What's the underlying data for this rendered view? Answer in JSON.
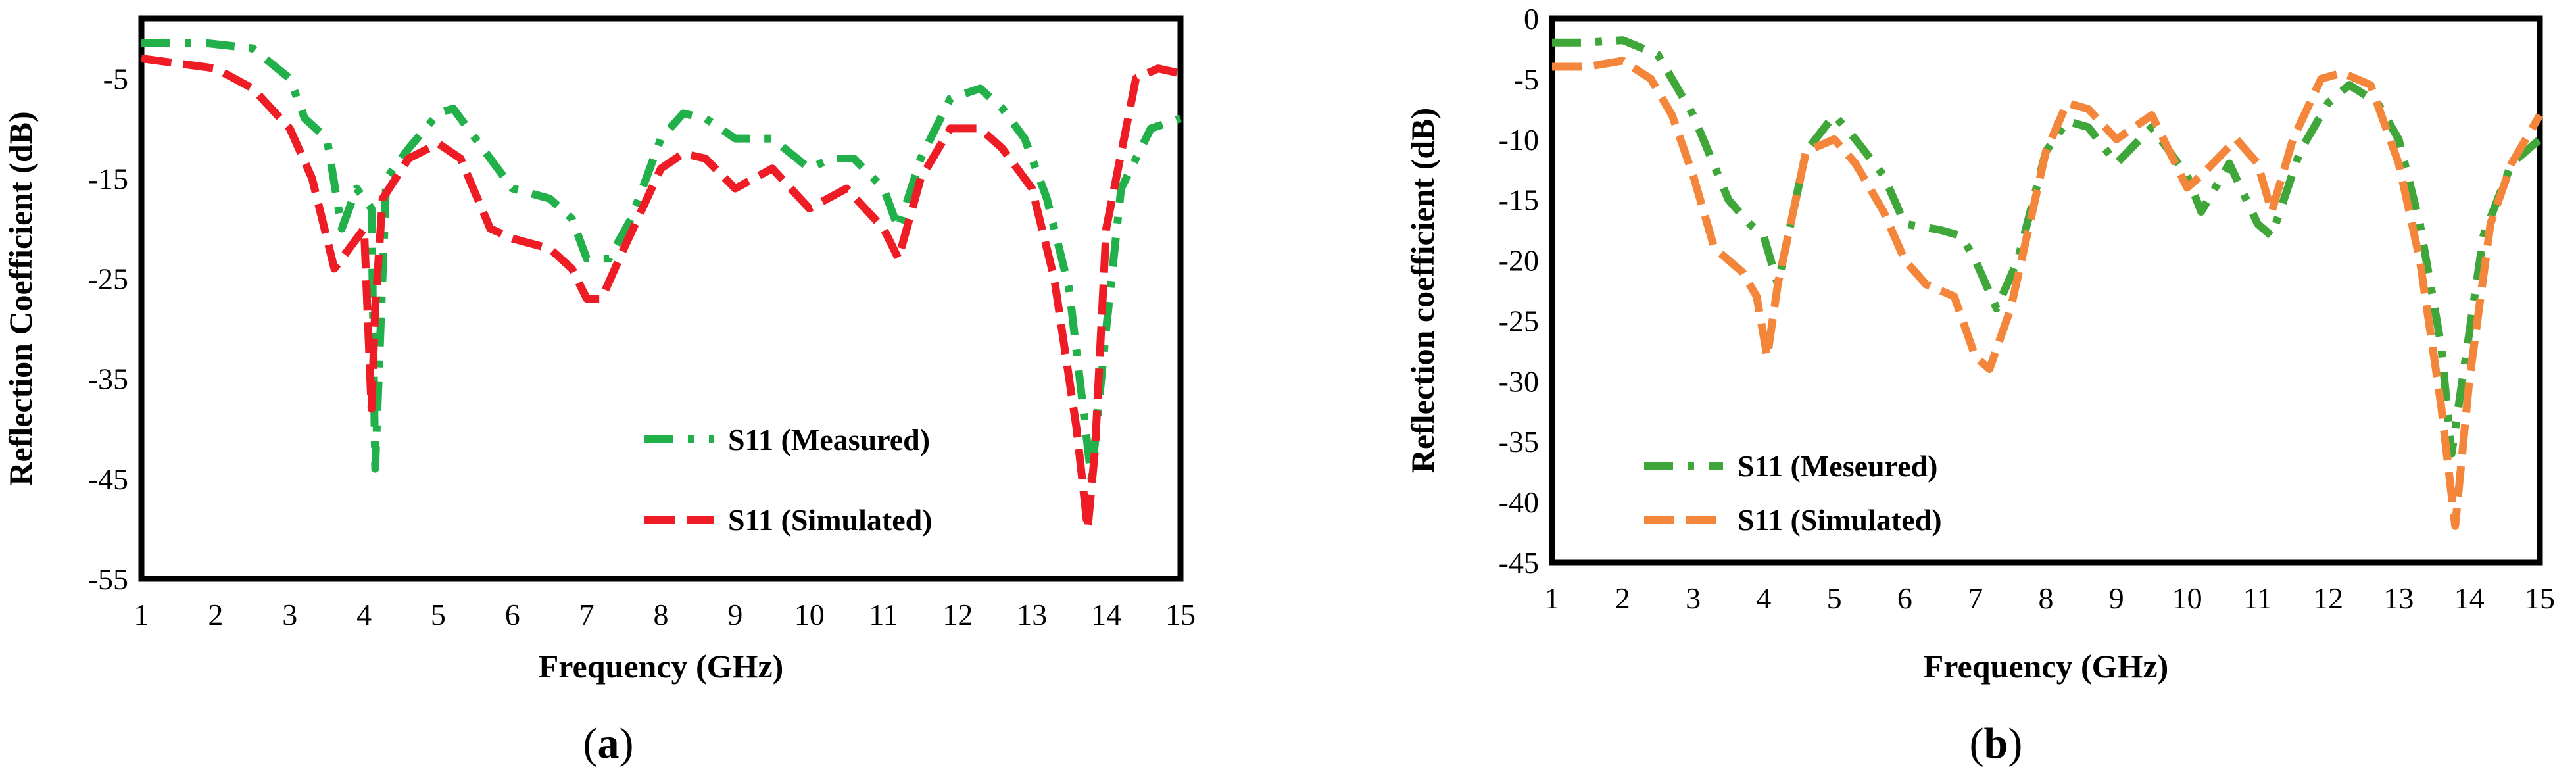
{
  "chart_data": [
    {
      "type": "line",
      "panel_label": "a",
      "xlabel": "Frequency (GHz)",
      "ylabel": "Reflection Coefficient (dB)",
      "xlim": [
        1,
        15
      ],
      "ylim": [
        -55,
        1
      ],
      "xticks": [
        1,
        2,
        3,
        4,
        5,
        6,
        7,
        8,
        9,
        10,
        11,
        12,
        13,
        14,
        15
      ],
      "yticks": [
        -5,
        -15,
        -25,
        -35,
        -45,
        -55
      ],
      "grid": false,
      "legend_position": "bottom-right",
      "series": [
        {
          "name": "S11 (Measured)",
          "color": "#22b04b",
          "style": "dash-dot",
          "x": [
            1,
            1.5,
            1.9,
            2.5,
            3,
            3.2,
            3.5,
            3.7,
            3.9,
            4.1,
            4.15,
            4.3,
            4.6,
            5,
            5.2,
            5.6,
            6,
            6.5,
            6.8,
            7,
            7.3,
            7.6,
            8,
            8.3,
            8.6,
            9,
            9.5,
            10,
            10.3,
            10.6,
            11,
            11.2,
            11.5,
            11.9,
            12.3,
            12.6,
            12.9,
            13.2,
            13.5,
            13.8,
            14,
            14.2,
            14.6,
            15
          ],
          "values": [
            -1.5,
            -1.5,
            -1.5,
            -2,
            -5,
            -9,
            -11,
            -20,
            -16,
            -18,
            -44,
            -15,
            -12,
            -8.5,
            -8,
            -12,
            -16,
            -17,
            -19,
            -23,
            -23,
            -19,
            -11,
            -8.5,
            -9,
            -11,
            -11,
            -14,
            -13,
            -13,
            -16,
            -20,
            -13,
            -7,
            -6,
            -8,
            -11,
            -17,
            -26,
            -45,
            -30,
            -16,
            -10,
            -9
          ]
        },
        {
          "name": "S11 (Simulated)",
          "color": "#ee1c25",
          "style": "dashed",
          "x": [
            1,
            1.5,
            2,
            2.5,
            3,
            3.3,
            3.6,
            3.8,
            4,
            4.1,
            4.15,
            4.25,
            4.6,
            5,
            5.3,
            5.7,
            6,
            6.5,
            6.8,
            7,
            7.2,
            7.5,
            8,
            8.3,
            8.6,
            9,
            9.5,
            10,
            10.5,
            11,
            11.2,
            11.5,
            11.9,
            12.3,
            12.6,
            13,
            13.3,
            13.6,
            13.75,
            13.85,
            14,
            14.4,
            14.7,
            15
          ],
          "values": [
            -3,
            -3.5,
            -4,
            -6,
            -10,
            -15,
            -24,
            -22,
            -20,
            -38,
            -28,
            -17,
            -13,
            -11.5,
            -13,
            -20,
            -21,
            -22,
            -24,
            -27,
            -27,
            -22,
            -14,
            -12.5,
            -13,
            -16,
            -14,
            -18,
            -16,
            -20,
            -23,
            -15,
            -10,
            -10,
            -12,
            -16,
            -25,
            -40,
            -50,
            -42,
            -20,
            -5,
            -4,
            -4.5
          ]
        }
      ]
    },
    {
      "type": "line",
      "panel_label": "b",
      "xlabel": "Frequency (GHz)",
      "ylabel": "Reflection  coefficient (dB)",
      "xlim": [
        1,
        15
      ],
      "ylim": [
        -45,
        0
      ],
      "xticks": [
        1,
        2,
        3,
        4,
        5,
        6,
        7,
        8,
        9,
        10,
        11,
        12,
        13,
        14,
        15
      ],
      "yticks": [
        0,
        -5,
        -10,
        -15,
        -20,
        -25,
        -30,
        -35,
        -40,
        -45
      ],
      "grid": false,
      "legend_position": "bottom-left",
      "series": [
        {
          "name": "S11 (Meseured)",
          "color": "#3fa63a",
          "style": "dash-dot",
          "x": [
            1,
            1.5,
            2,
            2.5,
            3,
            3.5,
            3.8,
            4,
            4.2,
            4.6,
            5,
            5.3,
            5.7,
            6,
            6.5,
            6.8,
            7,
            7.3,
            7.6,
            8,
            8.3,
            8.6,
            9,
            9.5,
            10,
            10.2,
            10.6,
            11,
            11.2,
            11.6,
            12,
            12.3,
            12.7,
            13,
            13.3,
            13.6,
            13.75,
            13.9,
            14.2,
            14.6,
            15
          ],
          "values": [
            -2,
            -2,
            -1.8,
            -3,
            -8,
            -15,
            -17,
            -18,
            -22,
            -11,
            -8,
            -10,
            -13,
            -17,
            -17.5,
            -18,
            -20,
            -24,
            -20,
            -11,
            -8.5,
            -9,
            -12,
            -9,
            -13,
            -16,
            -12,
            -17,
            -18,
            -11,
            -7,
            -5.5,
            -7,
            -10,
            -17,
            -27,
            -36,
            -30,
            -18,
            -12,
            -10
          ]
        },
        {
          "name": "S11 (Simulated)",
          "color": "#f4863b",
          "style": "dashed",
          "x": [
            1,
            1.5,
            2,
            2.4,
            2.7,
            3,
            3.3,
            3.7,
            3.9,
            4.05,
            4.2,
            4.6,
            5,
            5.3,
            5.7,
            6,
            6.3,
            6.7,
            7,
            7.2,
            7.5,
            8,
            8.3,
            8.6,
            9,
            9.5,
            10,
            10.2,
            10.7,
            11,
            11.2,
            11.5,
            11.9,
            12.2,
            12.6,
            13,
            13.3,
            13.6,
            13.8,
            14,
            14.3,
            14.6,
            15
          ],
          "values": [
            -4,
            -4,
            -3.5,
            -5,
            -8,
            -13,
            -19,
            -21,
            -23,
            -28,
            -22,
            -11,
            -10,
            -12,
            -16,
            -20,
            -22,
            -23,
            -28,
            -29,
            -24,
            -11,
            -7,
            -7.5,
            -10,
            -8,
            -14,
            -13,
            -10,
            -12,
            -16,
            -10,
            -5,
            -4.5,
            -5.5,
            -12,
            -20,
            -32,
            -42,
            -30,
            -17,
            -12,
            -8
          ]
        }
      ]
    }
  ],
  "captions": {
    "a": "a",
    "b": "b"
  }
}
